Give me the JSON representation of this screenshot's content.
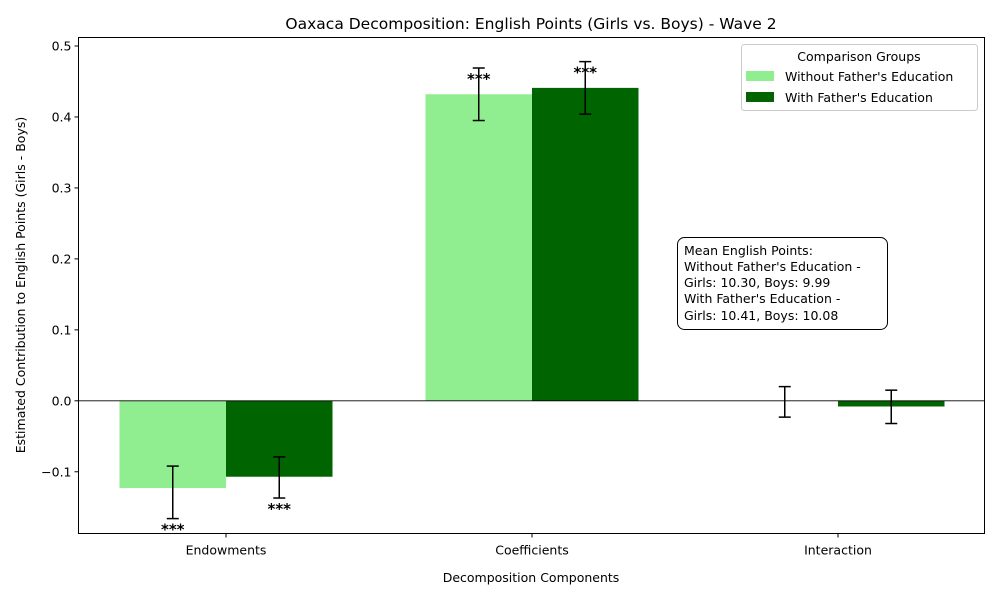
{
  "chart_data": {
    "type": "bar",
    "title": "Oaxaca Decomposition: English Points (Girls vs. Boys) - Wave 2",
    "xlabel": "Decomposition Components",
    "ylabel": "Estimated Contribution to English Points (Girls - Boys)",
    "categories": [
      "Endowments",
      "Coefficients",
      "Interaction"
    ],
    "ylim": [
      -0.187,
      0.512
    ],
    "yticks": [
      -0.1,
      0.0,
      0.1,
      0.2,
      0.3,
      0.4,
      0.5
    ],
    "ytick_labels": [
      "−0.1",
      "0.0",
      "0.1",
      "0.2",
      "0.3",
      "0.4",
      "0.5"
    ],
    "series": [
      {
        "name": "Without Father's Education",
        "color": "#90ee90",
        "values": [
          -0.123,
          0.432,
          0.0
        ],
        "err_low": [
          -0.166,
          0.395,
          -0.023
        ],
        "err_high": [
          -0.092,
          0.469,
          0.02
        ],
        "significance": [
          "***",
          "***",
          ""
        ]
      },
      {
        "name": "With Father's Education",
        "color": "#006400",
        "values": [
          -0.107,
          0.441,
          -0.008
        ],
        "err_low": [
          -0.137,
          0.404,
          -0.032
        ],
        "err_high": [
          -0.079,
          0.478,
          0.015
        ],
        "significance": [
          "***",
          "***",
          ""
        ]
      }
    ],
    "legend": {
      "title": "Comparison Groups",
      "position": "top-right"
    },
    "zero_line": true,
    "grid": false,
    "note_lines": [
      "Mean English Points:",
      "Without Father's Education -",
      "Girls: 10.30, Boys: 9.99",
      "With Father's Education -",
      "Girls: 10.41, Boys: 10.08"
    ]
  }
}
